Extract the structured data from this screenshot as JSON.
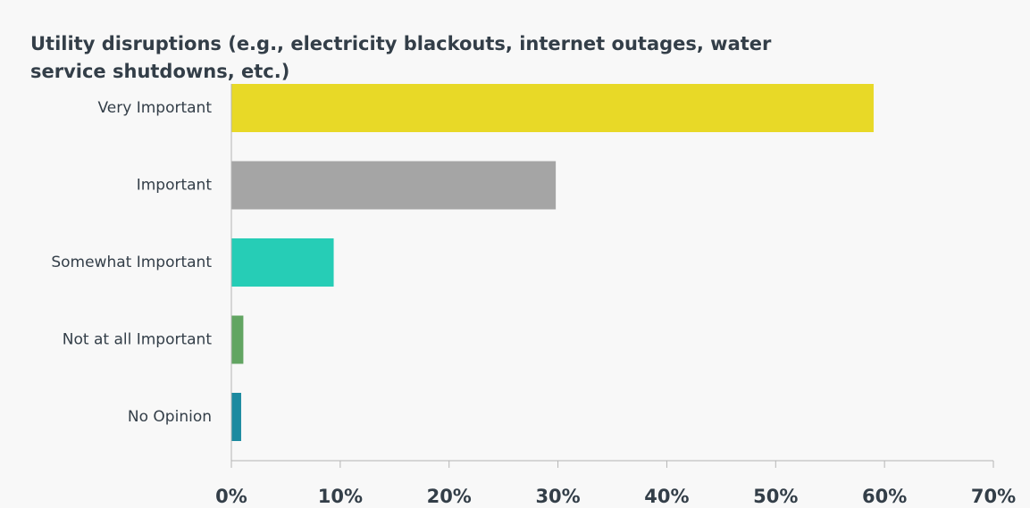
{
  "chart_data": {
    "type": "bar",
    "orientation": "horizontal",
    "title": "Utility disruptions (e.g., electricity blackouts, internet outages, water service shutdowns, etc.)",
    "xlabel": "",
    "ylabel": "",
    "categories": [
      "Very Important",
      "Important",
      "Somewhat Important",
      "Not at all Important",
      "No Opinion"
    ],
    "values": [
      59.0,
      29.8,
      9.4,
      1.1,
      0.9
    ],
    "value_unit": "%",
    "xlim": [
      0,
      70
    ],
    "xticks": [
      0,
      10,
      20,
      30,
      40,
      50,
      60,
      70
    ],
    "xtick_labels": [
      "0%",
      "10%",
      "20%",
      "30%",
      "40%",
      "50%",
      "60%",
      "70%"
    ],
    "colors": [
      "#e8d927",
      "#a5a5a5",
      "#26cdb6",
      "#62a562",
      "#1c8aa0"
    ],
    "grid": false,
    "legend": "none"
  }
}
